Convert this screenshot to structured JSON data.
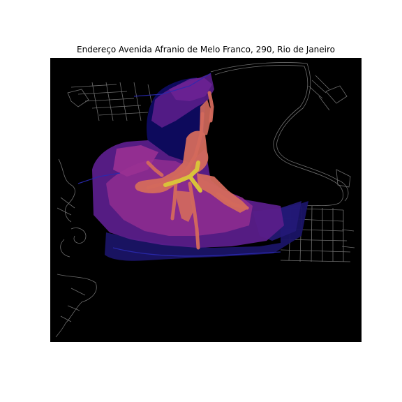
{
  "title": "Endereço Avenida Afranio de Melo Franco, 290, Rio de Janeiro",
  "colors": {
    "background": "#000000",
    "street_lines": "#6e6e6e",
    "water": "#0d0a5c",
    "low_access": "#1a1466",
    "mid_low_access": "#5a1d8a",
    "mid_access": "#8c2b8f",
    "high_access": "#d46a5c",
    "peak_access": "#d9c23a"
  },
  "layers": [
    "street-network",
    "accessibility-polygons",
    "high-access-corridors",
    "address-location"
  ]
}
